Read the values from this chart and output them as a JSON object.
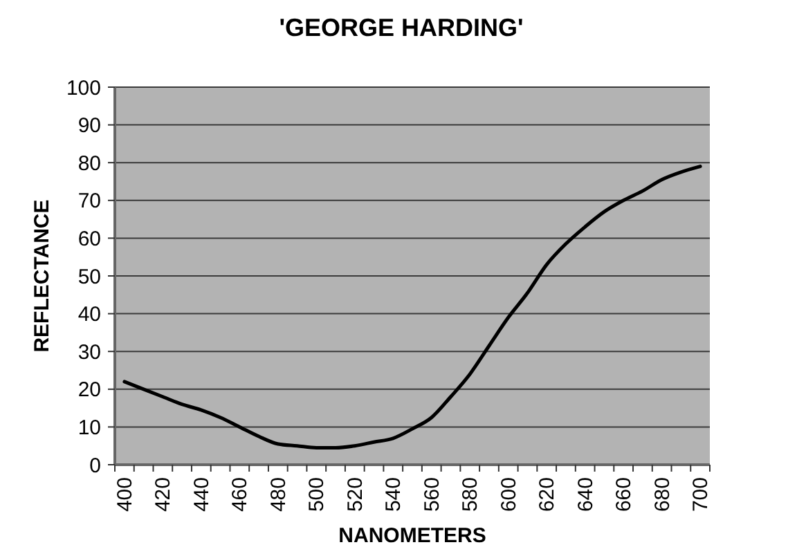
{
  "chart_data": {
    "type": "line",
    "title": "'GEORGE HARDING'",
    "xlabel": "NANOMETERS",
    "ylabel": "REFLECTANCE",
    "categories": [
      "400",
      null,
      "420",
      null,
      "440",
      null,
      "460",
      null,
      "480",
      null,
      "500",
      null,
      "520",
      null,
      "540",
      null,
      "560",
      null,
      "580",
      null,
      "600",
      null,
      "620",
      null,
      "640",
      null,
      "660",
      null,
      "680",
      null,
      "700"
    ],
    "series": [
      {
        "color": "#000000",
        "values": [
          22,
          20,
          18,
          16,
          14.5,
          12.5,
          10,
          7.5,
          5.5,
          5,
          4.5,
          4.5,
          5,
          6,
          7,
          9.5,
          12.5,
          18,
          24,
          31.5,
          39,
          45.5,
          53,
          58.5,
          63,
          67,
          70,
          72.5,
          75.5,
          77.5,
          79
        ]
      }
    ],
    "ylim": [
      0,
      100
    ],
    "yticks": [
      0,
      10,
      20,
      30,
      40,
      50,
      60,
      70,
      80,
      90,
      100
    ],
    "grid": "y",
    "marker": "none",
    "line_style": "solid"
  }
}
